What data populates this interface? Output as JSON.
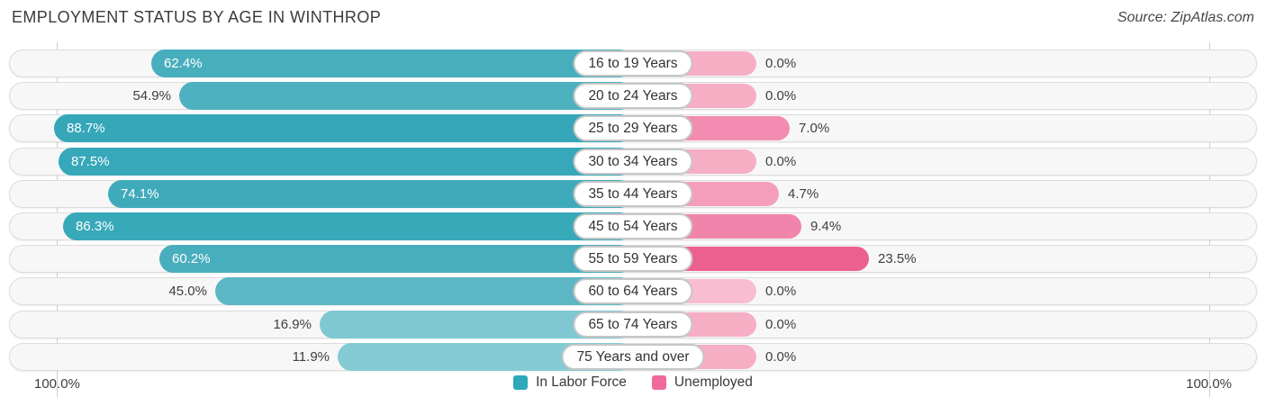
{
  "header": {
    "title": "EMPLOYMENT STATUS BY AGE IN WINTHROP",
    "source": "Source: ZipAtlas.com"
  },
  "footer": {
    "left_axis_label": "100.0%",
    "right_axis_label": "100.0%"
  },
  "legend": [
    {
      "label": "In Labor Force",
      "color": "#2ea8ba"
    },
    {
      "label": "Unemployed",
      "color": "#f0699c"
    }
  ],
  "chart_data": {
    "type": "bar",
    "orientation": "horizontal-diverging",
    "title": "Employment Status by Age in Winthrop",
    "axis_max_left": "100.0%",
    "axis_max_right": "100.0%",
    "legend_position": "bottom-center",
    "categories": [
      "16 to 19 Years",
      "20 to 24 Years",
      "25 to 29 Years",
      "30 to 34 Years",
      "35 to 44 Years",
      "45 to 54 Years",
      "55 to 59 Years",
      "60 to 64 Years",
      "65 to 74 Years",
      "75 Years and over"
    ],
    "series": [
      {
        "name": "In Labor Force",
        "values": [
          62.4,
          54.9,
          88.7,
          87.5,
          74.1,
          86.3,
          60.2,
          45.0,
          16.9,
          11.9
        ]
      },
      {
        "name": "Unemployed",
        "values": [
          0.0,
          0.0,
          7.0,
          0.0,
          4.7,
          9.4,
          23.5,
          0.0,
          0.0,
          0.0
        ]
      }
    ],
    "rows": [
      {
        "category": "16 to 19 Years",
        "labor_force": "62.4%",
        "unemployed": "0.0%",
        "labor_value": 62.4,
        "unemp_value": 0.0,
        "labor_color": "#47aebd",
        "unemp_color": "#f6aec5",
        "label_inside": true
      },
      {
        "category": "20 to 24 Years",
        "labor_force": "54.9%",
        "unemployed": "0.0%",
        "labor_value": 54.9,
        "unemp_value": 0.0,
        "labor_color": "#4db1c0",
        "unemp_color": "#f6aec5",
        "label_inside": false
      },
      {
        "category": "25 to 29 Years",
        "labor_force": "88.7%",
        "unemployed": "7.0%",
        "labor_value": 88.7,
        "unemp_value": 7.0,
        "labor_color": "#35a7b8",
        "unemp_color": "#f28cb1",
        "label_inside": true
      },
      {
        "category": "30 to 34 Years",
        "labor_force": "87.5%",
        "unemployed": "0.0%",
        "labor_value": 87.5,
        "unemp_value": 0.0,
        "labor_color": "#36a8b9",
        "unemp_color": "#f6aec5",
        "label_inside": true
      },
      {
        "category": "35 to 44 Years",
        "labor_force": "74.1%",
        "unemployed": "4.7%",
        "labor_value": 74.1,
        "unemp_value": 4.7,
        "labor_color": "#3fabba",
        "unemp_color": "#f49ebc",
        "label_inside": true
      },
      {
        "category": "45 to 54 Years",
        "labor_force": "86.3%",
        "unemployed": "9.4%",
        "labor_value": 86.3,
        "unemp_value": 9.4,
        "labor_color": "#38a9b9",
        "unemp_color": "#f184ab",
        "label_inside": true
      },
      {
        "category": "55 to 59 Years",
        "labor_force": "60.2%",
        "unemployed": "23.5%",
        "labor_value": 60.2,
        "unemp_value": 23.5,
        "labor_color": "#48aebd",
        "unemp_color": "#ec6090",
        "label_inside": true
      },
      {
        "category": "60 to 64 Years",
        "labor_force": "45.0%",
        "unemployed": "0.0%",
        "labor_value": 45.0,
        "unemp_value": 0.0,
        "labor_color": "#5cb6c4",
        "unemp_color": "#f8bdd0",
        "label_inside": false
      },
      {
        "category": "65 to 74 Years",
        "labor_force": "16.9%",
        "unemployed": "0.0%",
        "labor_value": 16.9,
        "unemp_value": 0.0,
        "labor_color": "#7fc8d2",
        "unemp_color": "#f6aec5",
        "label_inside": false
      },
      {
        "category": "75 Years and over",
        "labor_force": "11.9%",
        "unemployed": "0.0%",
        "labor_value": 11.9,
        "unemp_value": 0.0,
        "labor_color": "#85cbd4",
        "unemp_color": "#f6aec5",
        "label_inside": false
      }
    ]
  }
}
